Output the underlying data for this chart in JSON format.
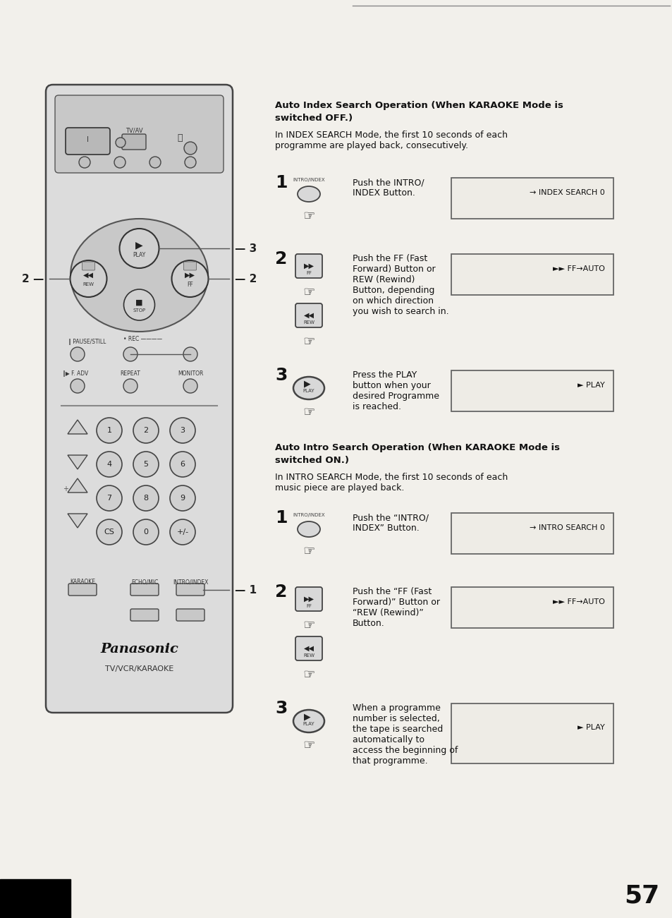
{
  "page_number": "57",
  "bg_color": "#f2f0eb",
  "section1_title_bold": "Auto Index Search Operation (When KARAOKE Mode is",
  "section1_title_bold2": "switched OFF.)",
  "section1_intro": "In INDEX SEARCH Mode, the first 10 seconds of each\nprogramme are played back, consecutively.",
  "section2_title_bold": "Auto Intro Search Operation (When KARAOKE Mode is",
  "section2_title_bold2": "switched ON.)",
  "section2_intro": "In INTRO SEARCH Mode, the first 10 seconds of each\nmusic piece are played back.",
  "step1_text_s1": "Push the INTRO/\nINDEX Button.",
  "step1_display_s1": "→ INDEX SEARCH 0",
  "step2_text_s1": "Push the FF (Fast\nForward) Button or\nREW (Rewind)\nButton, depending\non which direction\nyou wish to search in.",
  "step2_display_s1": "►► FF→AUTO",
  "step3_text_s1": "Press the PLAY\nbutton when your\ndesired Programme\nis reached.",
  "step3_display_s1": "► PLAY",
  "step1_text_s2": "Push the “INTRO/\nINDEX” Button.",
  "step1_display_s2": "→ INTRO SEARCH 0",
  "step2_text_s2": "Push the “FF (Fast\nForward)” Button or\n“REW (Rewind)”\nButton.",
  "step2_display_s2": "►► FF→AUTO",
  "step3_text_s2": "When a programme\nnumber is selected,\nthe tape is searched\nautomatically to\naccess the beginning of\nthat programme.",
  "step3_display_s2": "► PLAY",
  "panasonic_text": "Panasonic",
  "model_text": "TV/VCR/KARAOKE"
}
